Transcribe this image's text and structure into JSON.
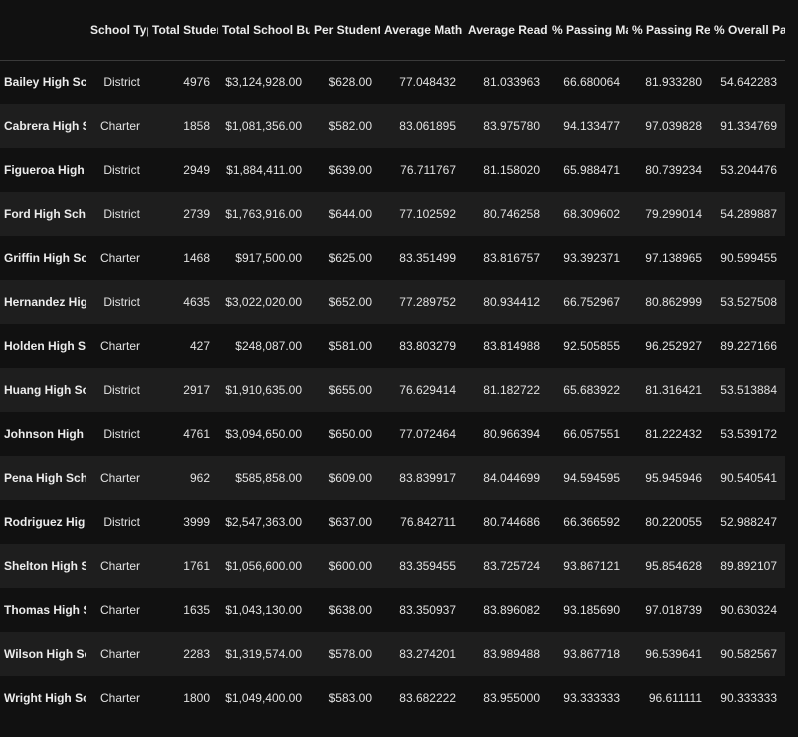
{
  "columns": [
    "",
    "School Type",
    "Total Students",
    "Total School Budget",
    "Per Student Budget",
    "Average Math Score",
    "Average Reading Score",
    "% Passing Math",
    "% Passing Reading",
    "% Overall Passing"
  ],
  "rows": [
    [
      "Bailey High School",
      "District",
      "4976",
      "$3,124,928.00",
      "$628.00",
      "77.048432",
      "81.033963",
      "66.680064",
      "81.933280",
      "54.642283"
    ],
    [
      "Cabrera High School",
      "Charter",
      "1858",
      "$1,081,356.00",
      "$582.00",
      "83.061895",
      "83.975780",
      "94.133477",
      "97.039828",
      "91.334769"
    ],
    [
      "Figueroa High School",
      "District",
      "2949",
      "$1,884,411.00",
      "$639.00",
      "76.711767",
      "81.158020",
      "65.988471",
      "80.739234",
      "53.204476"
    ],
    [
      "Ford High School",
      "District",
      "2739",
      "$1,763,916.00",
      "$644.00",
      "77.102592",
      "80.746258",
      "68.309602",
      "79.299014",
      "54.289887"
    ],
    [
      "Griffin High School",
      "Charter",
      "1468",
      "$917,500.00",
      "$625.00",
      "83.351499",
      "83.816757",
      "93.392371",
      "97.138965",
      "90.599455"
    ],
    [
      "Hernandez High School",
      "District",
      "4635",
      "$3,022,020.00",
      "$652.00",
      "77.289752",
      "80.934412",
      "66.752967",
      "80.862999",
      "53.527508"
    ],
    [
      "Holden High School",
      "Charter",
      "427",
      "$248,087.00",
      "$581.00",
      "83.803279",
      "83.814988",
      "92.505855",
      "96.252927",
      "89.227166"
    ],
    [
      "Huang High School",
      "District",
      "2917",
      "$1,910,635.00",
      "$655.00",
      "76.629414",
      "81.182722",
      "65.683922",
      "81.316421",
      "53.513884"
    ],
    [
      "Johnson High School",
      "District",
      "4761",
      "$3,094,650.00",
      "$650.00",
      "77.072464",
      "80.966394",
      "66.057551",
      "81.222432",
      "53.539172"
    ],
    [
      "Pena High School",
      "Charter",
      "962",
      "$585,858.00",
      "$609.00",
      "83.839917",
      "84.044699",
      "94.594595",
      "95.945946",
      "90.540541"
    ],
    [
      "Rodriguez High School",
      "District",
      "3999",
      "$2,547,363.00",
      "$637.00",
      "76.842711",
      "80.744686",
      "66.366592",
      "80.220055",
      "52.988247"
    ],
    [
      "Shelton High School",
      "Charter",
      "1761",
      "$1,056,600.00",
      "$600.00",
      "83.359455",
      "83.725724",
      "93.867121",
      "95.854628",
      "89.892107"
    ],
    [
      "Thomas High School",
      "Charter",
      "1635",
      "$1,043,130.00",
      "$638.00",
      "83.350937",
      "83.896082",
      "93.185690",
      "97.018739",
      "90.630324"
    ],
    [
      "Wilson High School",
      "Charter",
      "2283",
      "$1,319,574.00",
      "$578.00",
      "83.274201",
      "83.989488",
      "93.867718",
      "96.539641",
      "90.582567"
    ],
    [
      "Wright High School",
      "Charter",
      "1800",
      "$1,049,400.00",
      "$583.00",
      "83.682222",
      "83.955000",
      "93.333333",
      "96.611111",
      "90.333333"
    ]
  ]
}
